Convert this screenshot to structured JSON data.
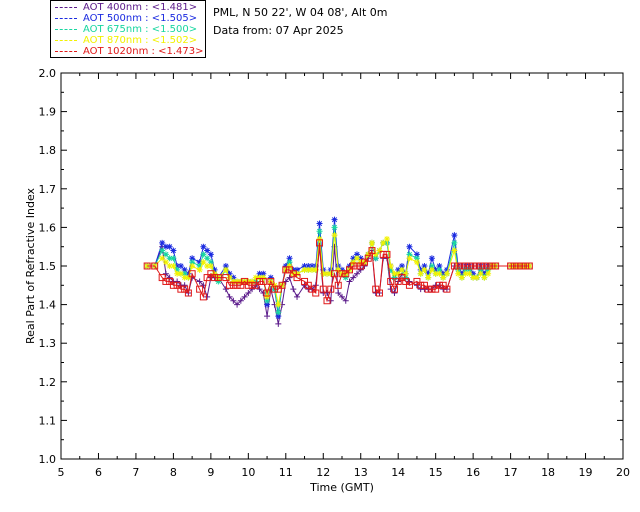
{
  "header": {
    "site": "PML, N 50 22', W 04 08', Alt 0m",
    "date": "Data from: 07 Apr 2025"
  },
  "legend": [
    {
      "label": "AOT  400nm : <1.481>",
      "color": "#5a1a8a"
    },
    {
      "label": "AOT  500nm : <1.505>",
      "color": "#1a2ae0"
    },
    {
      "label": "AOT  675nm : <1.500>",
      "color": "#18d6a0"
    },
    {
      "label": "AOT  870nm : <1.502>",
      "color": "#f2f200"
    },
    {
      "label": "AOT 1020nm : <1.473>",
      "color": "#e01818"
    }
  ],
  "chart_data": {
    "type": "line",
    "xlabel": "Time (GMT)",
    "ylabel": "Real Part of Refractive Index",
    "xlim": [
      5,
      20
    ],
    "ylim": [
      1.0,
      2.0
    ],
    "xticks": [
      "5",
      "6",
      "7",
      "8",
      "9",
      "10",
      "11",
      "12",
      "13",
      "14",
      "15",
      "16",
      "17",
      "18",
      "19",
      "20"
    ],
    "yticks": [
      "1.0",
      "1.1",
      "1.2",
      "1.3",
      "1.4",
      "1.5",
      "1.6",
      "1.7",
      "1.8",
      "1.9",
      "2.0"
    ],
    "grid": false,
    "legend_position": "top-left",
    "x": [
      7.3,
      7.5,
      7.7,
      7.8,
      7.9,
      8.0,
      8.1,
      8.2,
      8.3,
      8.4,
      8.5,
      8.7,
      8.8,
      8.9,
      9.0,
      9.1,
      9.2,
      9.4,
      9.5,
      9.6,
      9.7,
      9.8,
      9.9,
      10.0,
      10.1,
      10.2,
      10.3,
      10.4,
      10.5,
      10.6,
      10.7,
      10.8,
      10.9,
      11.0,
      11.1,
      11.2,
      11.3,
      11.5,
      11.6,
      11.7,
      11.8,
      11.9,
      12.0,
      12.1,
      12.2,
      12.3,
      12.4,
      12.5,
      12.6,
      12.7,
      12.8,
      12.9,
      13.0,
      13.1,
      13.2,
      13.3,
      13.4,
      13.5,
      13.6,
      13.7,
      13.8,
      13.9,
      14.0,
      14.1,
      14.2,
      14.3,
      14.5,
      14.6,
      14.7,
      14.8,
      14.9,
      15.0,
      15.1,
      15.2,
      15.3,
      15.5,
      15.6,
      15.7,
      15.8,
      15.9,
      16.0,
      16.1,
      16.2,
      16.3,
      16.4,
      16.5,
      16.6,
      17.0,
      17.1,
      17.2,
      17.3,
      17.4,
      17.5
    ],
    "series": [
      {
        "name": "AOT  400nm",
        "marker": "plus",
        "values": [
          1.5,
          1.5,
          1.55,
          1.48,
          1.47,
          1.46,
          1.46,
          1.45,
          1.45,
          1.43,
          1.47,
          1.46,
          1.45,
          1.42,
          1.47,
          1.47,
          1.47,
          1.44,
          1.42,
          1.41,
          1.4,
          1.41,
          1.42,
          1.43,
          1.44,
          1.45,
          1.44,
          1.43,
          1.37,
          1.44,
          1.4,
          1.35,
          1.4,
          1.46,
          1.47,
          1.44,
          1.42,
          1.45,
          1.44,
          1.44,
          1.45,
          1.55,
          1.43,
          1.43,
          1.41,
          1.55,
          1.43,
          1.42,
          1.41,
          1.46,
          1.47,
          1.48,
          1.49,
          1.5,
          1.52,
          1.54,
          1.43,
          1.43,
          1.52,
          1.52,
          1.44,
          1.43,
          1.46,
          1.48,
          1.47,
          1.46,
          1.45,
          1.44,
          1.44,
          1.44,
          1.44,
          1.45,
          1.45,
          1.44,
          1.44,
          1.5,
          1.5,
          1.5,
          1.5,
          1.5,
          1.5,
          1.5,
          1.5,
          1.5,
          1.5,
          1.5,
          1.5,
          1.5,
          1.5,
          1.5,
          1.5,
          1.5,
          1.5
        ]
      },
      {
        "name": "AOT  500nm",
        "marker": "star",
        "values": [
          1.5,
          1.5,
          1.56,
          1.55,
          1.55,
          1.54,
          1.5,
          1.5,
          1.49,
          1.48,
          1.52,
          1.51,
          1.55,
          1.54,
          1.53,
          1.49,
          1.47,
          1.5,
          1.48,
          1.47,
          1.46,
          1.46,
          1.46,
          1.46,
          1.46,
          1.46,
          1.48,
          1.48,
          1.4,
          1.47,
          1.44,
          1.37,
          1.45,
          1.5,
          1.52,
          1.49,
          1.49,
          1.5,
          1.5,
          1.5,
          1.5,
          1.61,
          1.49,
          1.48,
          1.49,
          1.62,
          1.5,
          1.49,
          1.48,
          1.5,
          1.52,
          1.53,
          1.52,
          1.51,
          1.53,
          1.56,
          1.52,
          1.54,
          1.56,
          1.56,
          1.5,
          1.47,
          1.49,
          1.5,
          1.48,
          1.55,
          1.53,
          1.49,
          1.5,
          1.48,
          1.52,
          1.49,
          1.5,
          1.48,
          1.49,
          1.58,
          1.5,
          1.48,
          1.5,
          1.5,
          1.48,
          1.47,
          1.5,
          1.48,
          1.5,
          1.5,
          1.5,
          1.5,
          1.5,
          1.5,
          1.5,
          1.5,
          1.5
        ]
      },
      {
        "name": "AOT  675nm",
        "marker": "star",
        "values": [
          1.5,
          1.5,
          1.54,
          1.53,
          1.52,
          1.52,
          1.49,
          1.48,
          1.48,
          1.47,
          1.51,
          1.5,
          1.53,
          1.52,
          1.51,
          1.48,
          1.46,
          1.49,
          1.47,
          1.46,
          1.46,
          1.46,
          1.46,
          1.46,
          1.46,
          1.46,
          1.47,
          1.47,
          1.41,
          1.46,
          1.44,
          1.38,
          1.45,
          1.49,
          1.51,
          1.48,
          1.48,
          1.49,
          1.49,
          1.49,
          1.49,
          1.59,
          1.48,
          1.48,
          1.48,
          1.6,
          1.49,
          1.48,
          1.47,
          1.49,
          1.51,
          1.52,
          1.51,
          1.51,
          1.53,
          1.56,
          1.52,
          1.54,
          1.56,
          1.56,
          1.49,
          1.47,
          1.48,
          1.49,
          1.47,
          1.53,
          1.52,
          1.48,
          1.49,
          1.47,
          1.5,
          1.48,
          1.49,
          1.47,
          1.48,
          1.56,
          1.49,
          1.47,
          1.49,
          1.49,
          1.47,
          1.47,
          1.49,
          1.47,
          1.49,
          1.5,
          1.5,
          1.5,
          1.5,
          1.5,
          1.5,
          1.5,
          1.5
        ]
      },
      {
        "name": "AOT  870nm",
        "marker": "star",
        "values": [
          1.5,
          1.5,
          1.52,
          1.51,
          1.5,
          1.5,
          1.48,
          1.48,
          1.47,
          1.47,
          1.5,
          1.49,
          1.51,
          1.5,
          1.5,
          1.48,
          1.47,
          1.49,
          1.47,
          1.46,
          1.46,
          1.46,
          1.46,
          1.46,
          1.46,
          1.47,
          1.47,
          1.47,
          1.42,
          1.46,
          1.45,
          1.4,
          1.45,
          1.49,
          1.5,
          1.48,
          1.48,
          1.49,
          1.49,
          1.49,
          1.49,
          1.57,
          1.48,
          1.48,
          1.48,
          1.58,
          1.49,
          1.48,
          1.48,
          1.49,
          1.51,
          1.52,
          1.51,
          1.51,
          1.53,
          1.56,
          1.53,
          1.54,
          1.56,
          1.57,
          1.5,
          1.48,
          1.48,
          1.49,
          1.48,
          1.52,
          1.51,
          1.48,
          1.49,
          1.47,
          1.49,
          1.48,
          1.48,
          1.47,
          1.48,
          1.54,
          1.48,
          1.47,
          1.48,
          1.48,
          1.47,
          1.47,
          1.48,
          1.47,
          1.48,
          1.5,
          1.5,
          1.5,
          1.5,
          1.5,
          1.5,
          1.5,
          1.5
        ]
      },
      {
        "name": "AOT 1020nm",
        "marker": "square",
        "values": [
          1.5,
          1.5,
          1.47,
          1.46,
          1.46,
          1.45,
          1.45,
          1.44,
          1.44,
          1.43,
          1.48,
          1.44,
          1.42,
          1.47,
          1.48,
          1.47,
          1.47,
          1.47,
          1.45,
          1.45,
          1.45,
          1.45,
          1.46,
          1.45,
          1.45,
          1.45,
          1.46,
          1.46,
          1.43,
          1.46,
          1.44,
          1.44,
          1.45,
          1.49,
          1.49,
          1.48,
          1.47,
          1.46,
          1.45,
          1.44,
          1.43,
          1.56,
          1.44,
          1.41,
          1.44,
          1.48,
          1.45,
          1.48,
          1.48,
          1.49,
          1.5,
          1.5,
          1.5,
          1.51,
          1.52,
          1.54,
          1.44,
          1.43,
          1.53,
          1.53,
          1.46,
          1.44,
          1.46,
          1.47,
          1.46,
          1.45,
          1.46,
          1.45,
          1.45,
          1.44,
          1.44,
          1.44,
          1.45,
          1.45,
          1.44,
          1.5,
          1.5,
          1.5,
          1.5,
          1.5,
          1.5,
          1.5,
          1.5,
          1.5,
          1.5,
          1.5,
          1.5,
          1.5,
          1.5,
          1.5,
          1.5,
          1.5,
          1.5
        ]
      }
    ]
  }
}
